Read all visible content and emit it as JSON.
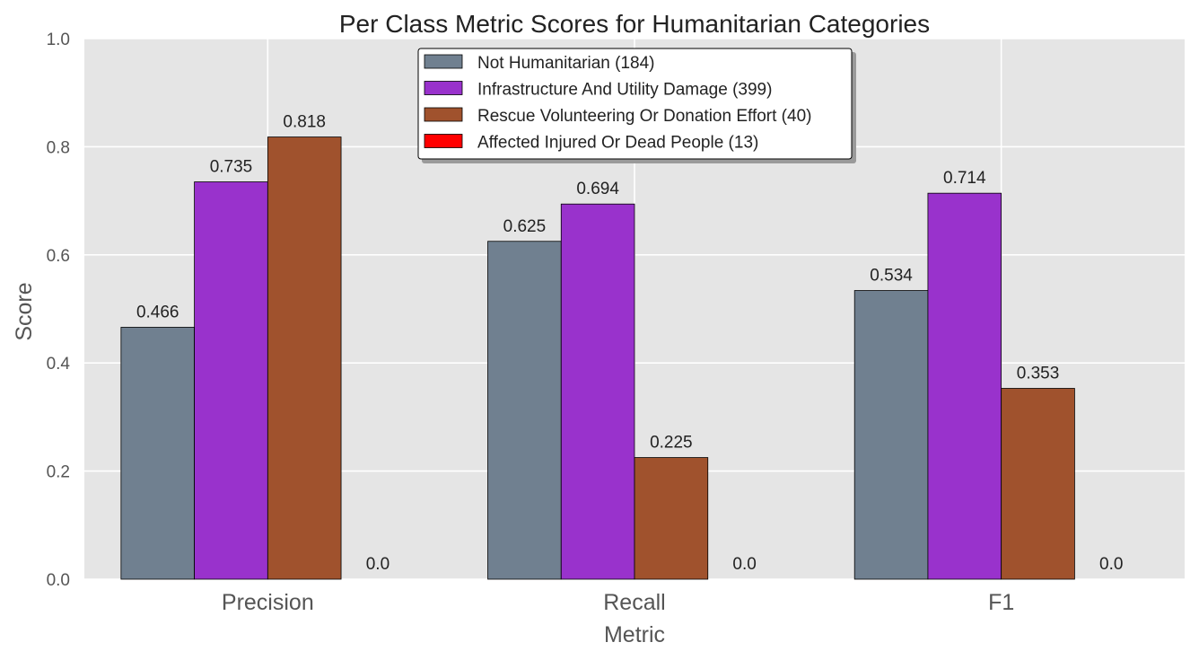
{
  "chart_data": {
    "type": "bar",
    "title": "Per Class Metric Scores for Humanitarian Categories",
    "xlabel": "Metric",
    "ylabel": "Score",
    "categories": [
      "Precision",
      "Recall",
      "F1"
    ],
    "ylim": [
      0,
      1.0
    ],
    "yticks": [
      "0.0",
      "0.2",
      "0.4",
      "0.6",
      "0.8",
      "1.0"
    ],
    "grid": true,
    "legend_position": "top-center",
    "series": [
      {
        "name": "Not Humanitarian (184)",
        "color": "#708090",
        "values": [
          0.466,
          0.625,
          0.534
        ],
        "labels": [
          "0.466",
          "0.625",
          "0.534"
        ]
      },
      {
        "name": "Infrastructure And Utility Damage (399)",
        "color": "#9932CC",
        "values": [
          0.735,
          0.694,
          0.714
        ],
        "labels": [
          "0.735",
          "0.694",
          "0.714"
        ]
      },
      {
        "name": "Rescue Volunteering Or Donation Effort (40)",
        "color": "#A0522D",
        "values": [
          0.818,
          0.225,
          0.353
        ],
        "labels": [
          "0.818",
          "0.225",
          "0.353"
        ]
      },
      {
        "name": "Affected Injured Or Dead People (13)",
        "color": "#FF0000",
        "values": [
          0.0,
          0.0,
          0.0
        ],
        "labels": [
          "0.0",
          "0.0",
          "0.0"
        ]
      }
    ]
  }
}
